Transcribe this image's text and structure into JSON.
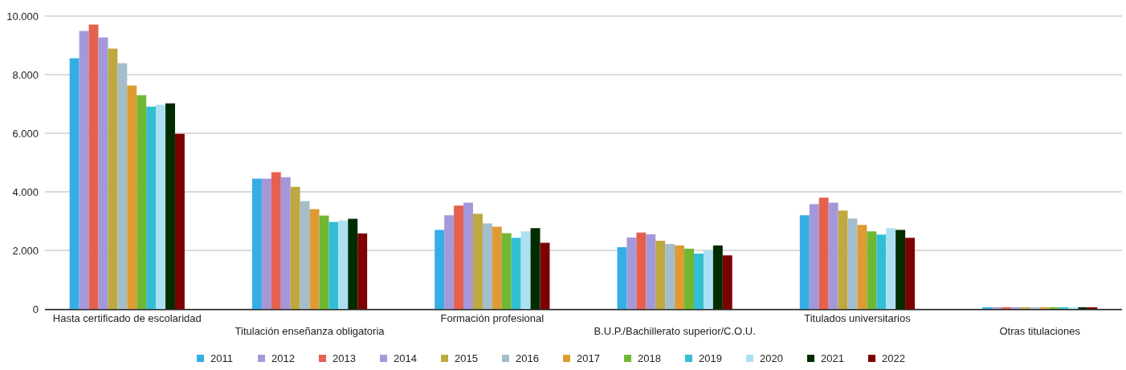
{
  "chart_data": {
    "type": "bar",
    "categories": [
      "Hasta certificado de escolaridad",
      "Titulación enseñanza obligatoria",
      "Formación profesional",
      "B.U.P./Bachillerato superior/C.O.U.",
      "Titulados universitarios",
      "Otras titulaciones"
    ],
    "series": [
      {
        "name": "2011",
        "color": "#35aee6",
        "values": [
          8560,
          4450,
          2700,
          2110,
          3200,
          60
        ]
      },
      {
        "name": "2012",
        "color": "#a598da",
        "values": [
          9490,
          4450,
          3200,
          2440,
          3580,
          60
        ]
      },
      {
        "name": "2013",
        "color": "#e5604f",
        "values": [
          9710,
          4670,
          3530,
          2610,
          3800,
          60
        ]
      },
      {
        "name": "2014",
        "color": "#a598da",
        "values": [
          9270,
          4500,
          3630,
          2550,
          3630,
          60
        ]
      },
      {
        "name": "2015",
        "color": "#bfa83f",
        "values": [
          8890,
          4170,
          3250,
          2330,
          3360,
          60
        ]
      },
      {
        "name": "2016",
        "color": "#a3bdcb",
        "values": [
          8390,
          3680,
          2920,
          2220,
          3090,
          60
        ]
      },
      {
        "name": "2017",
        "color": "#de9b33",
        "values": [
          7630,
          3410,
          2810,
          2170,
          2870,
          60
        ]
      },
      {
        "name": "2018",
        "color": "#70b834",
        "values": [
          7300,
          3190,
          2590,
          2060,
          2650,
          60
        ]
      },
      {
        "name": "2019",
        "color": "#33bfd3",
        "values": [
          6910,
          2970,
          2430,
          1890,
          2540,
          60
        ]
      },
      {
        "name": "2020",
        "color": "#addff3",
        "values": [
          6970,
          3020,
          2650,
          2000,
          2760,
          60
        ]
      },
      {
        "name": "2021",
        "color": "#002c00",
        "values": [
          7020,
          3080,
          2760,
          2170,
          2700,
          60
        ]
      },
      {
        "name": "2022",
        "color": "#7d0000",
        "values": [
          5980,
          2580,
          2260,
          1830,
          2430,
          60
        ]
      }
    ],
    "ylim": [
      0,
      10000
    ],
    "yticks": [
      0,
      {
        "value": 2000,
        "label": "2.000"
      },
      {
        "value": 4000,
        "label": "4.000"
      },
      {
        "value": 6000,
        "label": "6.000"
      },
      {
        "value": 8000,
        "label": "8.000"
      },
      {
        "value": 10000,
        "label": "10.000"
      }
    ],
    "grid": "y",
    "legend": "bottom"
  }
}
